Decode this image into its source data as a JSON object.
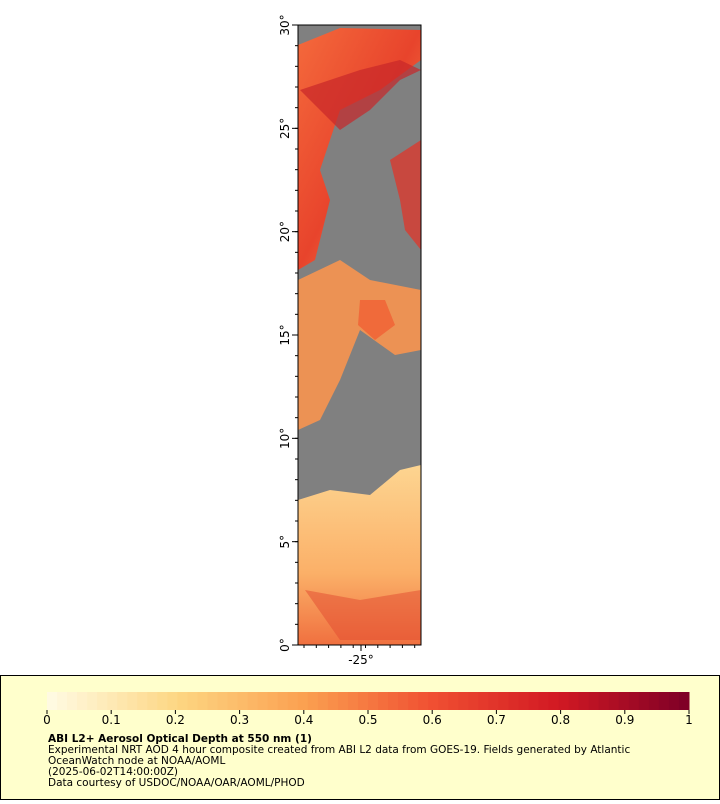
{
  "map": {
    "lat_labels": [
      "30°",
      "25°",
      "20°",
      "15°",
      "10°",
      "5°",
      "0°"
    ],
    "lon_labels": [
      "-25°"
    ]
  },
  "colorbar": {
    "ticks": [
      0,
      0.1,
      0.2,
      0.3,
      0.4,
      0.5,
      0.6,
      0.7,
      0.8,
      0.9,
      1
    ]
  },
  "caption": {
    "title": "ABI L2+ Aerosol Optical Depth at 550 nm (1)",
    "lines": [
      "Experimental NRT AOD 4 hour composite created from ABI L2 data from GOES-19. Fields generated by Atlantic",
      "OceanWatch node at NOAA/AOML",
      "(2025-06-02T14:00:00Z)",
      "Data courtesy of USDOC/NOAA/OAR/AOML/PHOD"
    ]
  }
}
